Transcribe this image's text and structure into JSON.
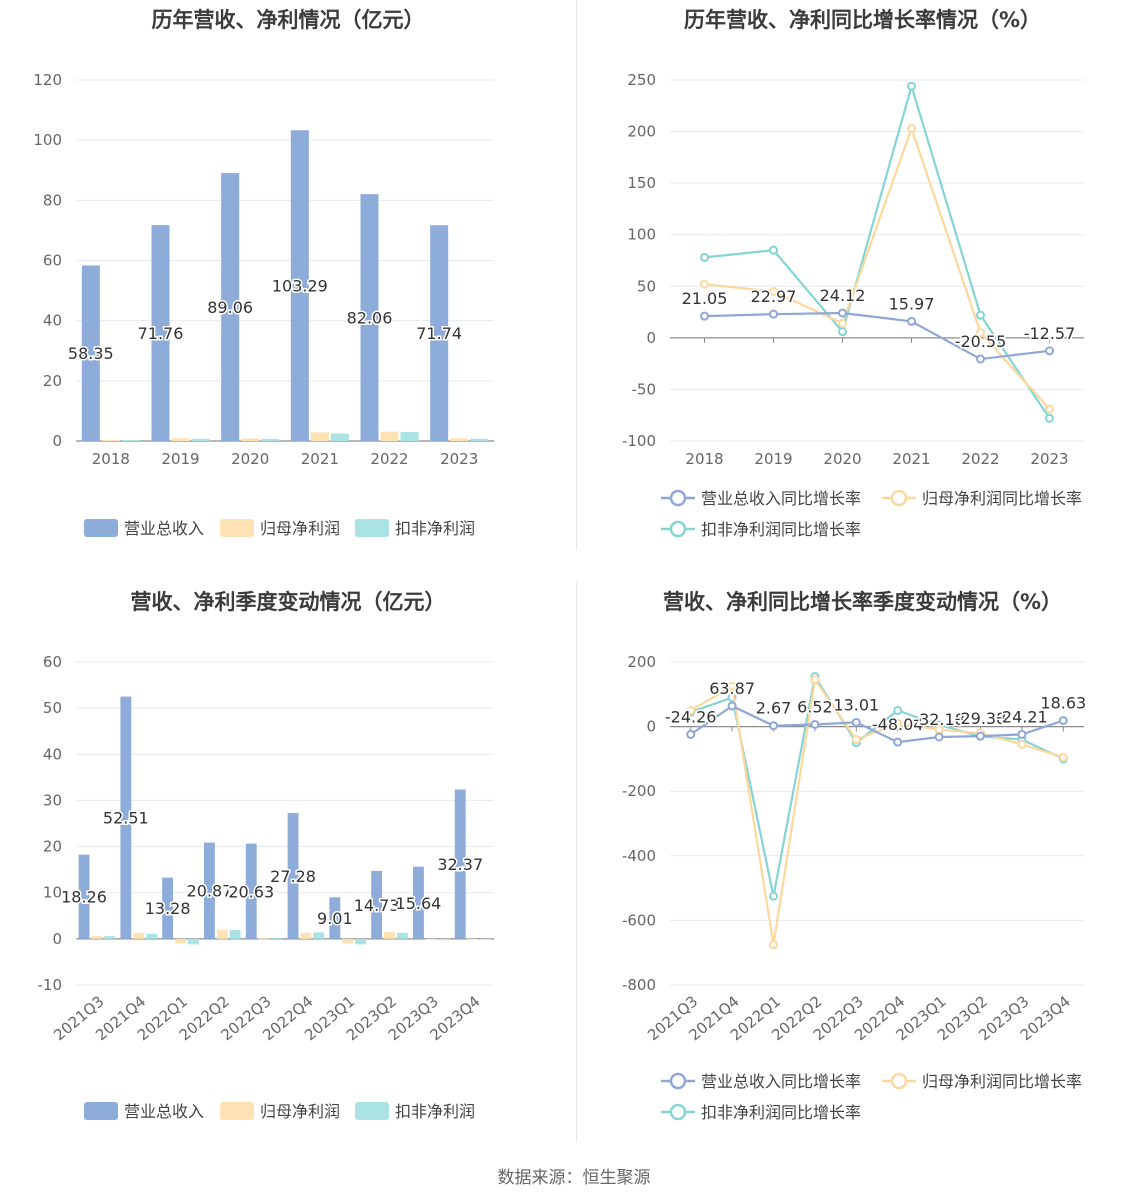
{
  "page": {
    "source_label": "数据来源：恒生聚源"
  },
  "colors": {
    "revenue": "#8eacd9",
    "net_profit": "#fde3b3",
    "deducted_profit": "#a9e3e3",
    "revenue_line": "#8ea7d8",
    "net_profit_line": "#fdd79c",
    "deducted_line": "#84d4d4"
  },
  "chart_data": [
    {
      "id": "annual-bar",
      "type": "bar",
      "title": "历年营收、净利情况（亿元）",
      "categories": [
        "2018",
        "2019",
        "2020",
        "2021",
        "2022",
        "2023"
      ],
      "series": [
        {
          "name": "营业总收入",
          "values": [
            58.35,
            71.76,
            89.06,
            103.29,
            82.06,
            71.74
          ],
          "labels": [
            "58.35",
            "71.76",
            "89.06",
            "103.29",
            "82.06",
            "71.74"
          ]
        },
        {
          "name": "归母净利润",
          "values": [
            0.3,
            0.9,
            0.8,
            2.9,
            3.1,
            0.9
          ]
        },
        {
          "name": "扣非净利润",
          "values": [
            0.3,
            0.7,
            0.7,
            2.5,
            3.0,
            0.7
          ]
        }
      ],
      "ylim": [
        0,
        120
      ],
      "yticks": [
        0,
        20,
        40,
        60,
        80,
        100,
        120
      ],
      "grid": true,
      "legend": "bottom"
    },
    {
      "id": "annual-growth",
      "type": "line",
      "title": "历年营收、净利同比增长率情况（%）",
      "categories": [
        "2018",
        "2019",
        "2020",
        "2021",
        "2022",
        "2023"
      ],
      "series": [
        {
          "name": "营业总收入同比增长率",
          "values": [
            21.05,
            22.97,
            24.12,
            15.97,
            -20.55,
            -12.57
          ],
          "labels": [
            "21.05",
            "22.97",
            "24.12",
            "15.97",
            "-20.55",
            "-12.57"
          ]
        },
        {
          "name": "归母净利润同比增长率",
          "values": [
            52,
            45,
            14,
            203,
            5,
            -69
          ]
        },
        {
          "name": "扣非净利润同比增长率",
          "values": [
            78,
            85,
            6,
            244,
            22,
            -78
          ]
        }
      ],
      "ylim": [
        -100,
        250
      ],
      "yticks": [
        -100,
        -50,
        0,
        50,
        100,
        150,
        200,
        250
      ],
      "grid": true,
      "legend": "bottom"
    },
    {
      "id": "quarterly-bar",
      "type": "bar",
      "title": "营收、净利季度变动情况（亿元）",
      "categories": [
        "2021Q3",
        "2021Q4",
        "2022Q1",
        "2022Q2",
        "2022Q3",
        "2022Q4",
        "2023Q1",
        "2023Q2",
        "2023Q3",
        "2023Q4"
      ],
      "series": [
        {
          "name": "营业总收入",
          "values": [
            18.26,
            52.51,
            13.28,
            20.87,
            20.63,
            27.28,
            9.01,
            14.73,
            15.64,
            32.37
          ],
          "labels": [
            "18.26",
            "52.51",
            "13.28",
            "20.87",
            "20.63",
            "27.28",
            "9.01",
            "14.73",
            "15.64",
            "32.37"
          ]
        },
        {
          "name": "归母净利润",
          "values": [
            0.6,
            1.3,
            -1.0,
            2.0,
            0.1,
            1.3,
            -1.0,
            1.5,
            -0.1,
            0.0
          ]
        },
        {
          "name": "扣非净利润",
          "values": [
            0.6,
            1.1,
            -1.2,
            1.9,
            0.2,
            1.4,
            -1.2,
            1.3,
            -0.2,
            -0.1
          ]
        }
      ],
      "ylim": [
        -10,
        60
      ],
      "yticks": [
        -10,
        0,
        10,
        20,
        30,
        40,
        50,
        60
      ],
      "grid": true,
      "legend": "bottom"
    },
    {
      "id": "quarterly-growth",
      "type": "line",
      "title": "营收、净利同比增长率季度变动情况（%）",
      "categories": [
        "2021Q3",
        "2021Q4",
        "2022Q1",
        "2022Q2",
        "2022Q3",
        "2022Q4",
        "2023Q1",
        "2023Q2",
        "2023Q3",
        "2023Q4"
      ],
      "series": [
        {
          "name": "营业总收入同比增长率",
          "values": [
            -24.26,
            63.87,
            2.67,
            6.52,
            13.01,
            -48.04,
            -32.18,
            -29.38,
            -24.21,
            18.63
          ],
          "labels": [
            "-24.26",
            "63.87",
            "2.67",
            "6.52",
            "13.01",
            "-48.04",
            "-32.18",
            "-29.38",
            "-24.21",
            "18.63"
          ]
        },
        {
          "name": "归母净利润同比增长率",
          "values": [
            50,
            125,
            -675,
            145,
            -40,
            10,
            -10,
            -20,
            -55,
            -95
          ]
        },
        {
          "name": "扣非净利润同比增长率",
          "values": [
            45,
            90,
            -525,
            155,
            -50,
            50,
            5,
            -30,
            -40,
            -100
          ]
        }
      ],
      "ylim": [
        -800,
        200
      ],
      "yticks": [
        -800,
        -600,
        -400,
        -200,
        0,
        200
      ],
      "grid": true,
      "legend": "bottom"
    }
  ]
}
